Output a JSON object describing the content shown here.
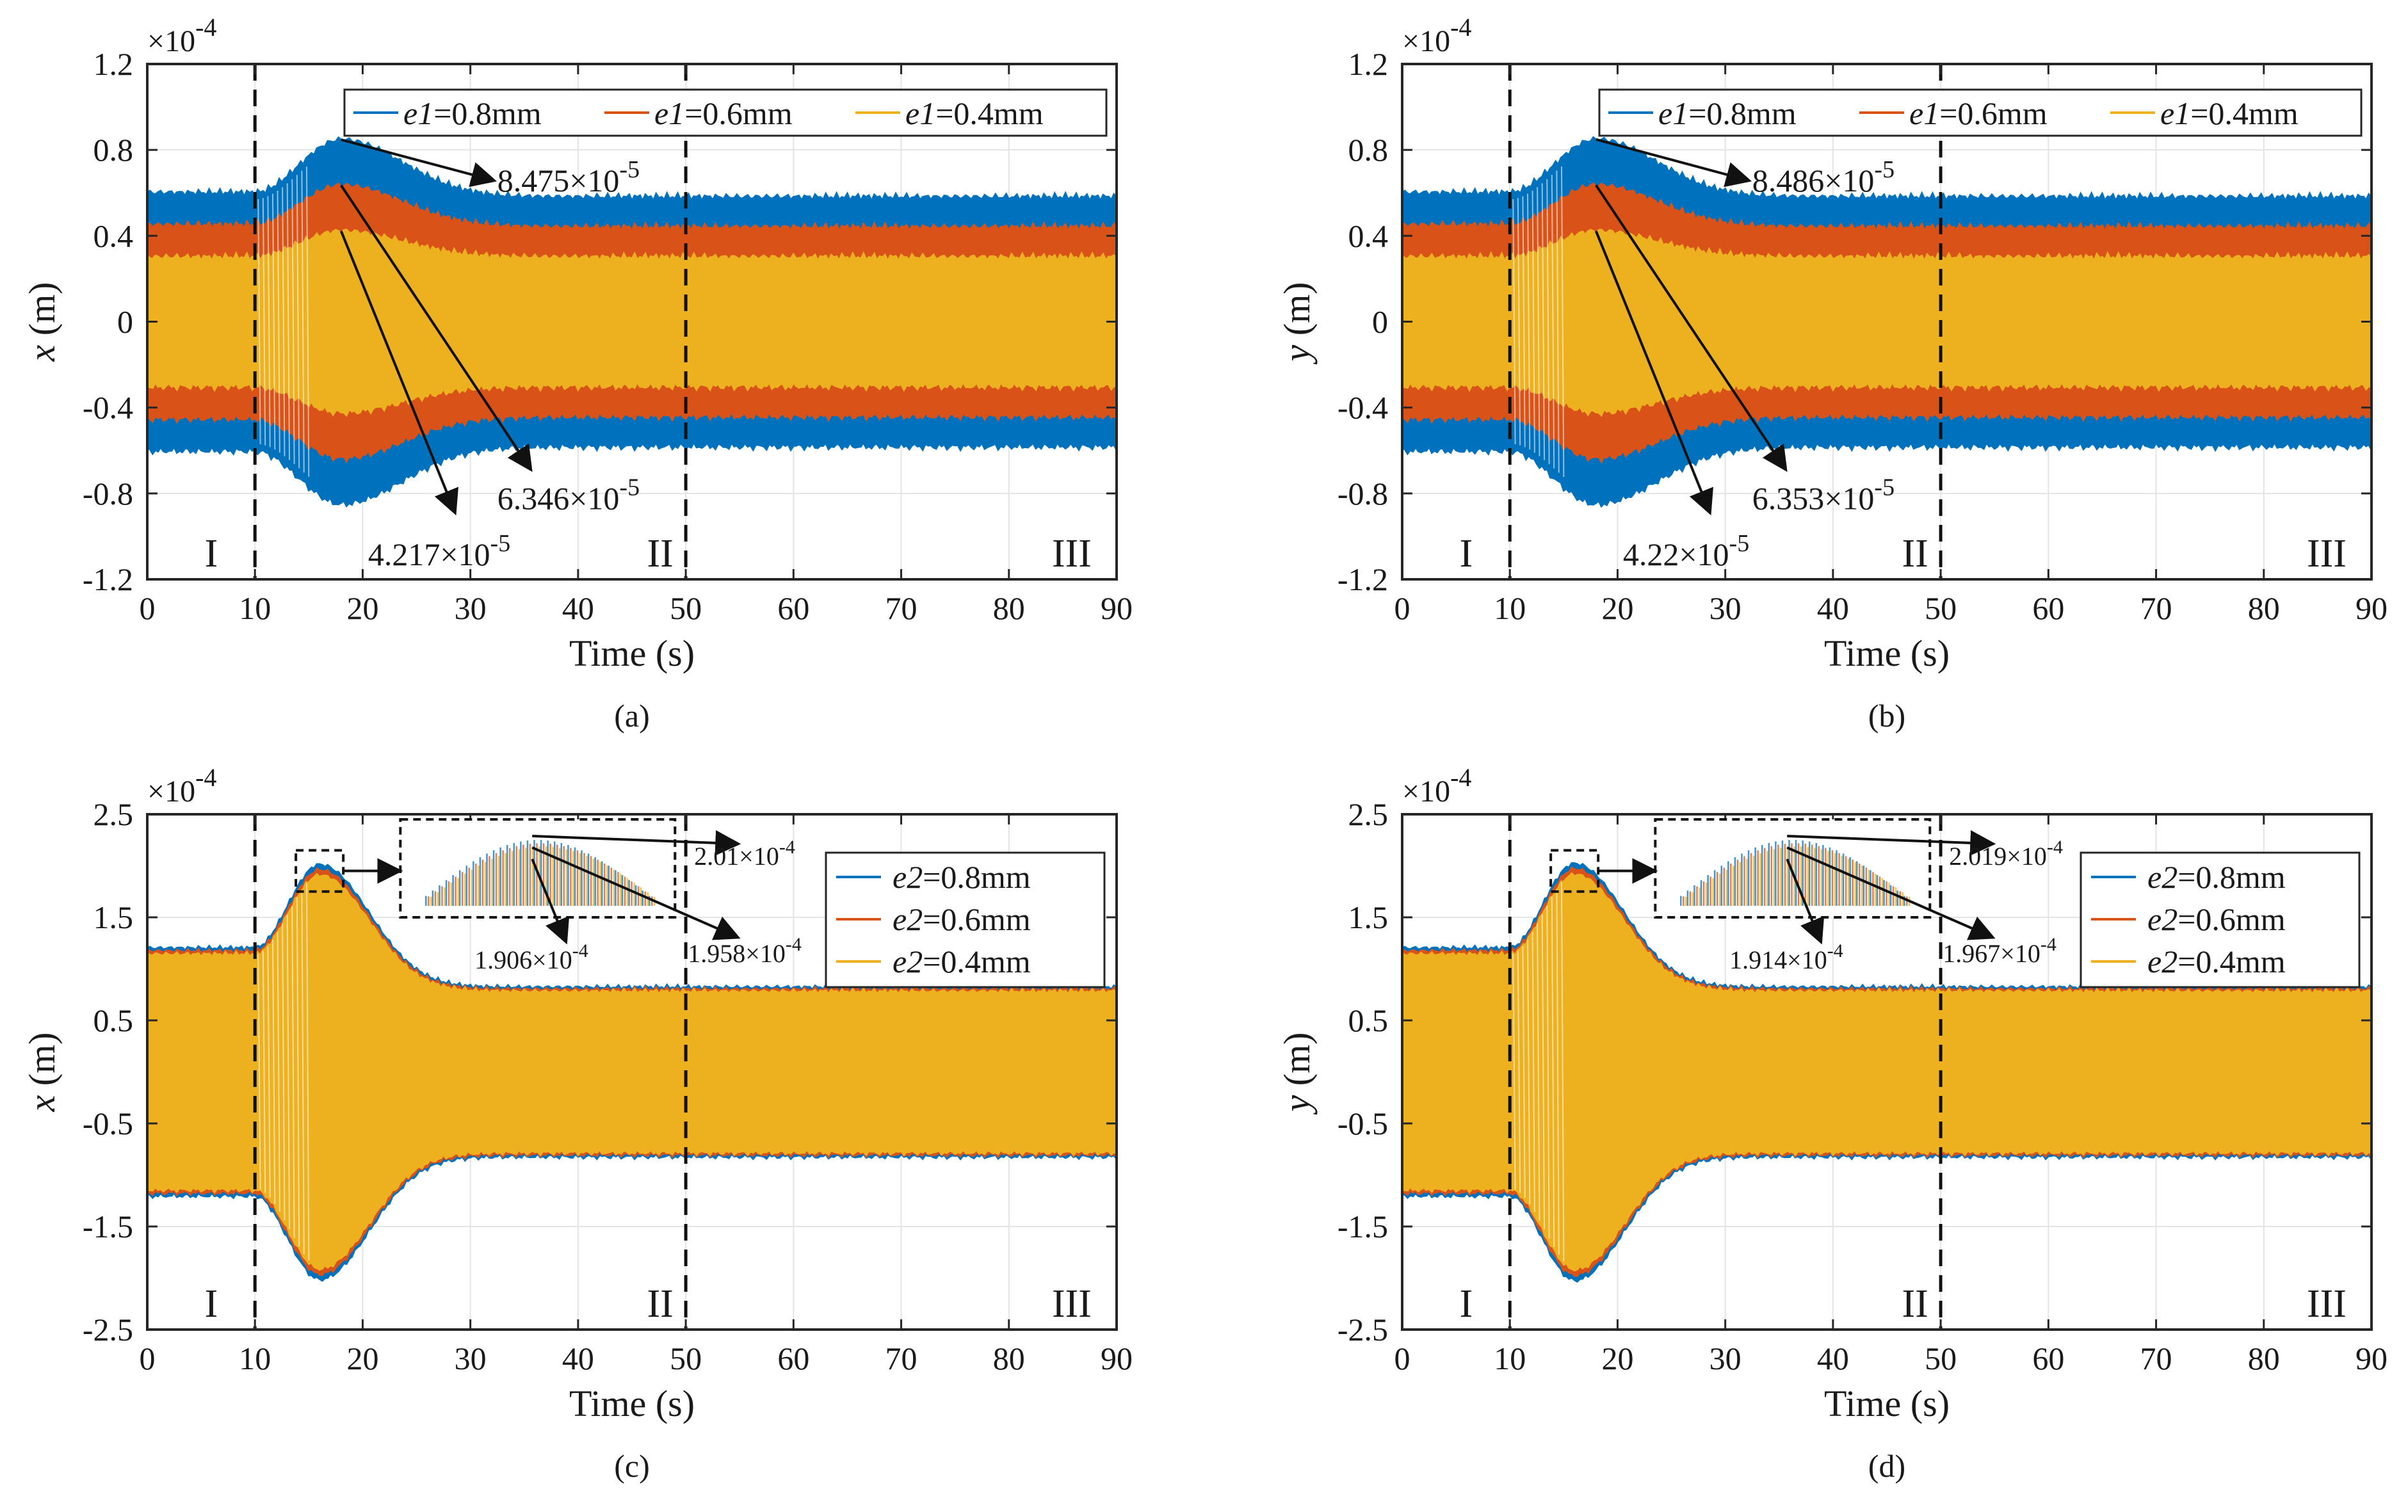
{
  "chart_data": [
    {
      "panel": "(a)",
      "type": "line",
      "xlabel": "Time (s)",
      "ylabel_var": "x",
      "ylabel_unit": " (m)",
      "exponent": "×10",
      "exponent_power": "-4",
      "xlim": [
        0,
        90
      ],
      "ylim": [
        -1.2,
        1.2
      ],
      "xticks": [
        0,
        10,
        20,
        30,
        40,
        50,
        60,
        70,
        80,
        90
      ],
      "xtick_labels": [
        "0",
        "10",
        "20",
        "30",
        "40",
        "50",
        "60",
        "70",
        "80",
        "90"
      ],
      "yticks": [
        -1.2,
        -0.8,
        -0.4,
        0,
        0.4,
        0.8,
        1.2
      ],
      "ytick_labels": [
        "-1.2",
        "-0.8",
        "-0.4",
        "0",
        "0.4",
        "0.8",
        "1.2"
      ],
      "phase_boundaries": [
        10,
        50
      ],
      "regions": [
        "I",
        "II",
        "III"
      ],
      "legend_position": "top-right-horizontal",
      "series": [
        {
          "name": "e1=0.8mm",
          "var": "e1",
          "eq": "=0.8mm",
          "color": "#0072BD",
          "steady_I": 0.6,
          "peak": 0.8475,
          "peak_time": 18,
          "steady_III": 0.58
        },
        {
          "name": "e1=0.6mm",
          "var": "e1",
          "eq": "=0.6mm",
          "color": "#D95319",
          "steady_I": 0.45,
          "peak": 0.6346,
          "peak_time": 18,
          "steady_III": 0.44
        },
        {
          "name": "e1=0.4mm",
          "var": "e1",
          "eq": "=0.4mm",
          "color": "#EDB120",
          "steady_I": 0.3,
          "peak": 0.4217,
          "peak_time": 18,
          "steady_III": 0.3
        }
      ],
      "annotations": [
        {
          "mantissa": "8.475×10",
          "power": "-5"
        },
        {
          "mantissa": "6.346×10",
          "power": "-5"
        },
        {
          "mantissa": "4.217×10",
          "power": "-5"
        }
      ]
    },
    {
      "panel": "(b)",
      "type": "line",
      "xlabel": "Time (s)",
      "ylabel_var": "y",
      "ylabel_unit": " (m)",
      "exponent": "×10",
      "exponent_power": "-4",
      "xlim": [
        0,
        90
      ],
      "ylim": [
        -1.2,
        1.2
      ],
      "xticks": [
        0,
        10,
        20,
        30,
        40,
        50,
        60,
        70,
        80,
        90
      ],
      "xtick_labels": [
        "0",
        "10",
        "20",
        "30",
        "40",
        "50",
        "60",
        "70",
        "80",
        "90"
      ],
      "yticks": [
        -1.2,
        -0.8,
        -0.4,
        0,
        0.4,
        0.8,
        1.2
      ],
      "ytick_labels": [
        "-1.2",
        "-0.8",
        "-0.4",
        "0",
        "0.4",
        "0.8",
        "1.2"
      ],
      "phase_boundaries": [
        10,
        50
      ],
      "regions": [
        "I",
        "II",
        "III"
      ],
      "legend_position": "top-right-horizontal",
      "series": [
        {
          "name": "e1=0.8mm",
          "var": "e1",
          "eq": "=0.8mm",
          "color": "#0072BD",
          "steady_I": 0.6,
          "peak": 0.8486,
          "peak_time": 18,
          "steady_III": 0.58
        },
        {
          "name": "e1=0.6mm",
          "var": "e1",
          "eq": "=0.6mm",
          "color": "#D95319",
          "steady_I": 0.45,
          "peak": 0.6353,
          "peak_time": 18,
          "steady_III": 0.44
        },
        {
          "name": "e1=0.4mm",
          "var": "e1",
          "eq": "=0.4mm",
          "color": "#EDB120",
          "steady_I": 0.3,
          "peak": 0.422,
          "peak_time": 18,
          "steady_III": 0.3
        }
      ],
      "annotations": [
        {
          "mantissa": "8.486×10",
          "power": "-5"
        },
        {
          "mantissa": "6.353×10",
          "power": "-5"
        },
        {
          "mantissa": "4.22×10",
          "power": "-5"
        }
      ]
    },
    {
      "panel": "(c)",
      "type": "line",
      "xlabel": "Time (s)",
      "ylabel_var": "x",
      "ylabel_unit": " (m)",
      "exponent": "×10",
      "exponent_power": "-4",
      "xlim": [
        0,
        90
      ],
      "ylim": [
        -2.5,
        2.5
      ],
      "xticks": [
        0,
        10,
        20,
        30,
        40,
        50,
        60,
        70,
        80,
        90
      ],
      "xtick_labels": [
        "0",
        "10",
        "20",
        "30",
        "40",
        "50",
        "60",
        "70",
        "80",
        "90"
      ],
      "yticks": [
        -2.5,
        -1.5,
        -0.5,
        0.5,
        1.5,
        2.5
      ],
      "ytick_labels": [
        "-2.5",
        "-1.5",
        "-0.5",
        "0.5",
        "1.5",
        "2.5"
      ],
      "phase_boundaries": [
        10,
        50
      ],
      "regions": [
        "I",
        "II",
        "III"
      ],
      "legend_position": "upper-right-vertical",
      "series": [
        {
          "name": "e2=0.8mm",
          "var": "e2",
          "eq": "=0.8mm",
          "color": "#0072BD",
          "steady_I": 1.2,
          "peak": 2.01,
          "peak_time": 16,
          "steady_III": 0.82
        },
        {
          "name": "e2=0.6mm",
          "var": "e2",
          "eq": "=0.6mm",
          "color": "#D95319",
          "steady_I": 1.17,
          "peak": 1.958,
          "peak_time": 16,
          "steady_III": 0.8
        },
        {
          "name": "e2=0.4mm",
          "var": "e2",
          "eq": "=0.4mm",
          "color": "#EDB120",
          "steady_I": 1.14,
          "peak": 1.906,
          "peak_time": 16,
          "steady_III": 0.78
        }
      ],
      "annotations": [
        {
          "mantissa": "2.01×10",
          "power": "-4"
        },
        {
          "mantissa": "1.958×10",
          "power": "-4"
        },
        {
          "mantissa": "1.906×10",
          "power": "-4"
        }
      ]
    },
    {
      "panel": "(d)",
      "type": "line",
      "xlabel": "Time (s)",
      "ylabel_var": "y",
      "ylabel_unit": " (m)",
      "exponent": "×10",
      "exponent_power": "-4",
      "xlim": [
        0,
        90
      ],
      "ylim": [
        -2.5,
        2.5
      ],
      "xticks": [
        0,
        10,
        20,
        30,
        40,
        50,
        60,
        70,
        80,
        90
      ],
      "xtick_labels": [
        "0",
        "10",
        "20",
        "30",
        "40",
        "50",
        "60",
        "70",
        "80",
        "90"
      ],
      "yticks": [
        -2.5,
        -1.5,
        -0.5,
        0.5,
        1.5,
        2.5
      ],
      "ytick_labels": [
        "-2.5",
        "-1.5",
        "-0.5",
        "0.5",
        "1.5",
        "2.5"
      ],
      "phase_boundaries": [
        10,
        50
      ],
      "regions": [
        "I",
        "II",
        "III"
      ],
      "legend_position": "upper-right-vertical",
      "series": [
        {
          "name": "e2=0.8mm",
          "var": "e2",
          "eq": "=0.8mm",
          "color": "#0072BD",
          "steady_I": 1.2,
          "peak": 2.019,
          "peak_time": 16,
          "steady_III": 0.82
        },
        {
          "name": "e2=0.6mm",
          "var": "e2",
          "eq": "=0.6mm",
          "color": "#D95319",
          "steady_I": 1.17,
          "peak": 1.967,
          "peak_time": 16,
          "steady_III": 0.8
        },
        {
          "name": "e2=0.4mm",
          "var": "e2",
          "eq": "=0.4mm",
          "color": "#EDB120",
          "steady_I": 1.14,
          "peak": 1.914,
          "peak_time": 16,
          "steady_III": 0.78
        }
      ],
      "annotations": [
        {
          "mantissa": "2.019×10",
          "power": "-4"
        },
        {
          "mantissa": "1.967×10",
          "power": "-4"
        },
        {
          "mantissa": "1.914×10",
          "power": "-4"
        }
      ]
    }
  ]
}
